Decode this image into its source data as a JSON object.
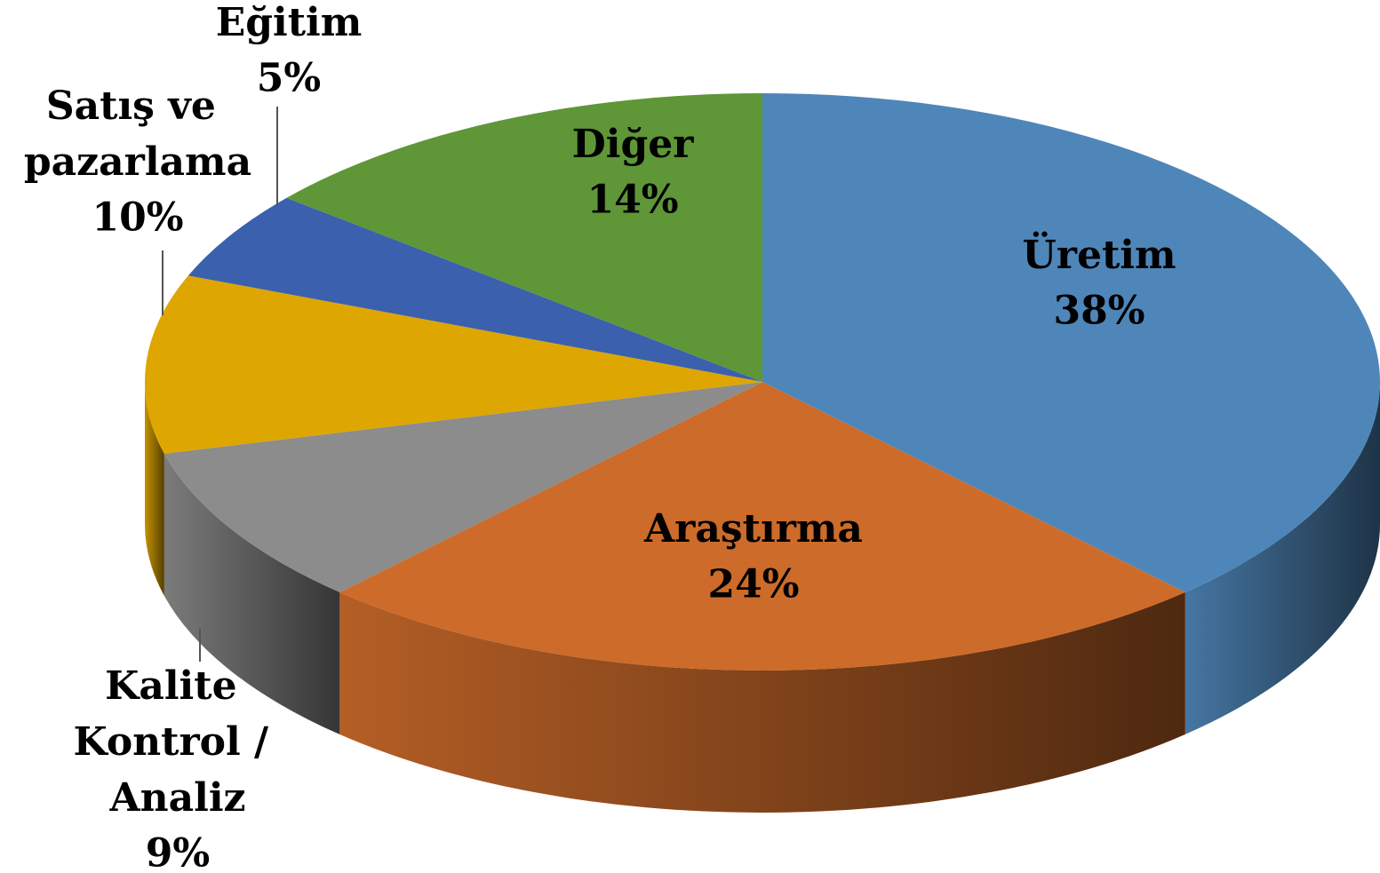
{
  "chart_data": {
    "type": "pie3d",
    "categories": [
      "Üretim",
      "Araştırma",
      "Kalite Kontrol / Analiz",
      "Satış ve pazarlama",
      "Eğitim",
      "Diğer"
    ],
    "values": [
      38,
      24,
      9,
      10,
      5,
      14
    ],
    "value_labels": [
      "38%",
      "24%",
      "9%",
      "10%",
      "5%",
      "14%"
    ],
    "colors": [
      "#4f86b9",
      "#cd6b2a",
      "#8c8c8c",
      "#dea600",
      "#3a60ae",
      "#5f9637"
    ]
  }
}
